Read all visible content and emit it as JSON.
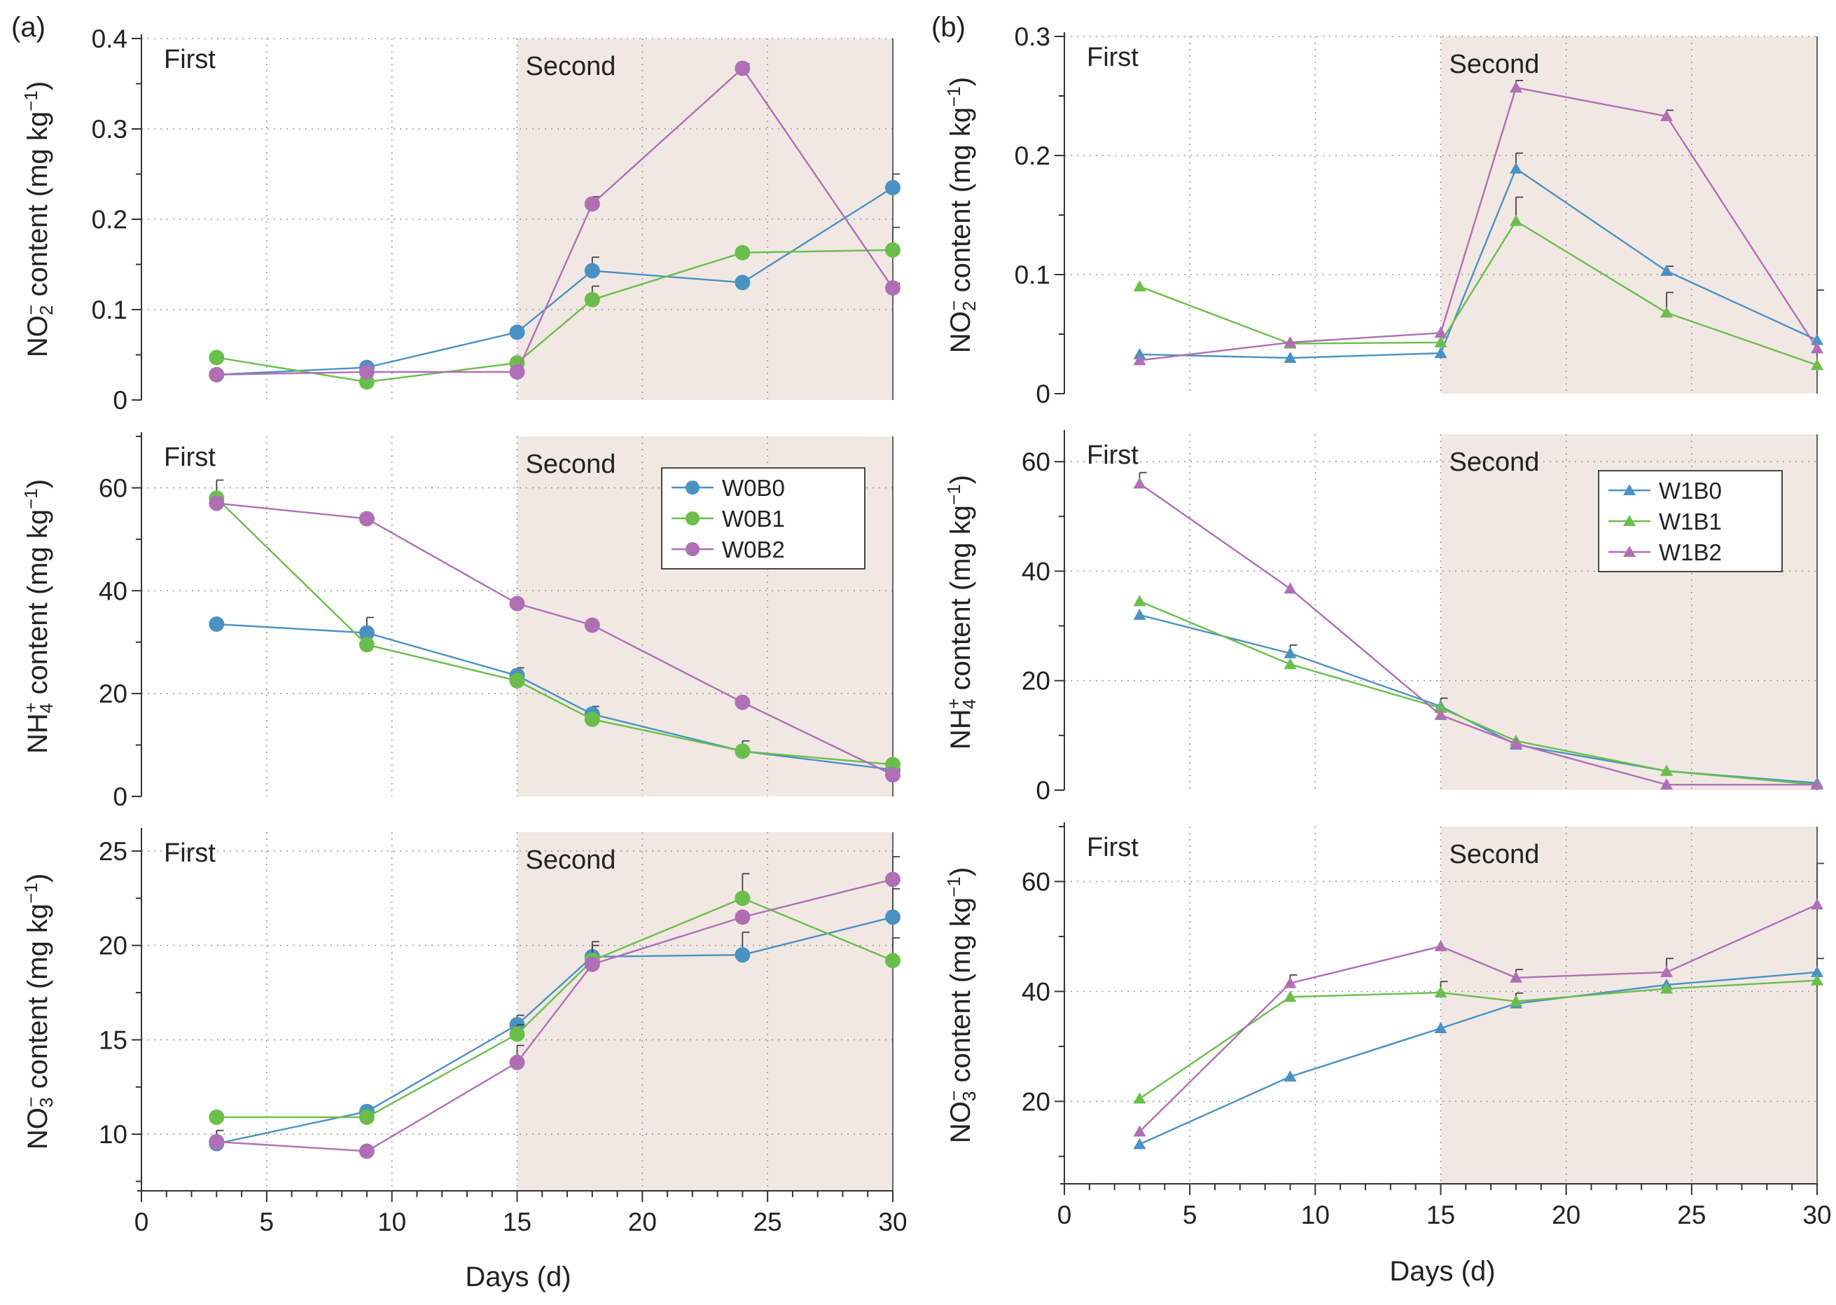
{
  "figure": {
    "panel_labels": [
      "(a)",
      "(b)"
    ],
    "phase_first": "First",
    "phase_second": "Second",
    "x_axis": {
      "label": "Days (d)",
      "range": [
        0,
        30
      ],
      "ticks": [
        0,
        5,
        10,
        15,
        20,
        25,
        30
      ],
      "tick_labels": [
        "0",
        "5",
        "10",
        "15",
        "20",
        "25",
        "30"
      ],
      "tick_labels_b": [
        "0",
        "5",
        "10",
        "15",
        "20",
        "25",
        "30"
      ]
    },
    "second_stage_start_day": 15,
    "second_stage_end_day": 30,
    "colors": {
      "B0": "#4a92c4",
      "B1": "#6abf4b",
      "B2": "#b06fb5",
      "shade": "#f1e8e3",
      "frame": "#333333",
      "grid": "#999999"
    }
  },
  "chart_data": [
    {
      "id": "a-no2",
      "panel": "(a)",
      "type": "line",
      "marker": "circle",
      "ylabel": "NO₂⁻ content (mg kg⁻¹)",
      "ylabel_species": "NO",
      "ylabel_sub": "2",
      "ylabel_sup": "−",
      "ylabel_rest": " content (mg kg",
      "ylabel_unit_sup": "−1",
      "ylabel_close": ")",
      "ylim": [
        0,
        0.4
      ],
      "yticks": [
        0,
        0.1,
        0.2,
        0.3,
        0.4
      ],
      "ytick_labels": [
        "0",
        "0.1",
        "0.2",
        "0.3",
        "0.4"
      ],
      "x": [
        3,
        9,
        15,
        18,
        24,
        30
      ],
      "series": [
        {
          "name": "W0B0",
          "key": "B0",
          "values": [
            0.028,
            0.036,
            0.075,
            0.143,
            0.13,
            0.235
          ],
          "err": [
            0,
            0,
            0,
            0.015,
            0,
            0.015
          ]
        },
        {
          "name": "W0B1",
          "key": "B1",
          "values": [
            0.047,
            0.02,
            0.041,
            0.111,
            0.163,
            0.166
          ],
          "err": [
            0,
            0,
            0,
            0.015,
            0,
            0.025
          ]
        },
        {
          "name": "W0B2",
          "key": "B2",
          "values": [
            0.028,
            0.031,
            0.031,
            0.217,
            0.367,
            0.124
          ],
          "err": [
            0,
            0,
            0,
            0.008,
            0.005,
            0.005
          ]
        }
      ]
    },
    {
      "id": "a-nh4",
      "panel": "(a)",
      "type": "line",
      "marker": "circle",
      "ylabel": "NH₄⁺ content (mg kg⁻¹)",
      "ylabel_species": "NH",
      "ylabel_sub": "4",
      "ylabel_sup": "+",
      "ylabel_rest": " content (mg kg",
      "ylabel_unit_sup": "−1",
      "ylabel_close": ")",
      "ylim": [
        0,
        70
      ],
      "yticks": [
        0,
        20,
        40,
        60
      ],
      "ytick_labels": [
        "0",
        "20",
        "40",
        "60"
      ],
      "x": [
        3,
        9,
        15,
        18,
        24,
        30
      ],
      "legend": [
        "W0B0",
        "W0B1",
        "W0B2"
      ],
      "series": [
        {
          "name": "W0B0",
          "key": "B0",
          "values": [
            33.5,
            31.8,
            23.5,
            16.0,
            8.8,
            5.2
          ],
          "err": [
            0,
            3.0,
            1.5,
            1.5,
            2.0,
            0
          ]
        },
        {
          "name": "W0B1",
          "key": "B1",
          "values": [
            58.0,
            29.5,
            22.5,
            15.0,
            8.8,
            6.2
          ],
          "err": [
            3.5,
            0,
            0,
            0,
            0,
            0
          ]
        },
        {
          "name": "W0B2",
          "key": "B2",
          "values": [
            57.0,
            54.0,
            37.5,
            33.3,
            18.3,
            4.2
          ],
          "err": [
            0,
            0,
            0,
            0,
            0,
            0
          ]
        }
      ]
    },
    {
      "id": "a-no3",
      "panel": "(a)",
      "type": "line",
      "marker": "circle",
      "ylabel": "NO₃⁻ content (mg kg⁻¹)",
      "ylabel_species": "NO",
      "ylabel_sub": "3",
      "ylabel_sup": "−",
      "ylabel_rest": " content (mg kg",
      "ylabel_unit_sup": "−1",
      "ylabel_close": ")",
      "ylim": [
        7,
        26
      ],
      "yticks": [
        10,
        15,
        20,
        25
      ],
      "ytick_labels": [
        "10",
        "15",
        "20",
        "25"
      ],
      "x": [
        3,
        9,
        15,
        18,
        24,
        30
      ],
      "series": [
        {
          "name": "W0B0",
          "key": "B0",
          "values": [
            9.5,
            11.2,
            15.8,
            19.4,
            19.5,
            21.5
          ],
          "err": [
            0,
            0,
            0.5,
            0.8,
            1.2,
            1.5
          ]
        },
        {
          "name": "W0B1",
          "key": "B1",
          "values": [
            10.9,
            10.9,
            15.3,
            19.2,
            22.5,
            19.2
          ],
          "err": [
            0,
            0,
            0.5,
            0.8,
            1.3,
            1.2
          ]
        },
        {
          "name": "W0B2",
          "key": "B2",
          "values": [
            9.6,
            9.1,
            13.8,
            19.0,
            21.5,
            23.5
          ],
          "err": [
            0.6,
            0,
            0.9,
            0,
            0,
            1.2
          ]
        }
      ]
    },
    {
      "id": "b-no2",
      "panel": "(b)",
      "type": "line",
      "marker": "triangle",
      "ylabel": "NO₂⁻ content (mg kg⁻¹)",
      "ylabel_species": "NO",
      "ylabel_sub": "2",
      "ylabel_sup": "−",
      "ylabel_rest": " content (mg kg",
      "ylabel_unit_sup": "−1",
      "ylabel_close": ")",
      "ylim": [
        0,
        0.3
      ],
      "yticks": [
        0,
        0.1,
        0.2,
        0.3
      ],
      "ytick_labels": [
        "0",
        "0.1",
        "0.2",
        "0.3"
      ],
      "x": [
        3,
        9,
        15,
        18,
        24,
        30
      ],
      "series": [
        {
          "name": "W1B0",
          "key": "B0",
          "values": [
            0.033,
            0.03,
            0.034,
            0.189,
            0.103,
            0.045
          ],
          "err": [
            0,
            0,
            0,
            0.013,
            0.004,
            0.042
          ]
        },
        {
          "name": "W1B1",
          "key": "B1",
          "values": [
            0.09,
            0.042,
            0.043,
            0.145,
            0.068,
            0.024
          ],
          "err": [
            0,
            0,
            0,
            0.02,
            0.017,
            0
          ]
        },
        {
          "name": "W1B2",
          "key": "B2",
          "values": [
            0.028,
            0.043,
            0.051,
            0.257,
            0.233,
            0.038
          ],
          "err": [
            0,
            0,
            0,
            0.006,
            0.005,
            0
          ]
        }
      ]
    },
    {
      "id": "b-nh4",
      "panel": "(b)",
      "type": "line",
      "marker": "triangle",
      "ylabel": "NH₄⁺ content (mg kg⁻¹)",
      "ylabel_species": "NH",
      "ylabel_sub": "4",
      "ylabel_sup": "+",
      "ylabel_rest": " content (mg kg",
      "ylabel_unit_sup": "−1",
      "ylabel_close": ")",
      "ylim": [
        0,
        65
      ],
      "yticks": [
        0,
        20,
        40,
        60
      ],
      "ytick_labels": [
        "0",
        "20",
        "40",
        "60"
      ],
      "x": [
        3,
        9,
        15,
        18,
        24,
        30
      ],
      "legend": [
        "W1B0",
        "W1B1",
        "W1B2"
      ],
      "series": [
        {
          "name": "W1B0",
          "key": "B0",
          "values": [
            32.0,
            25.0,
            15.3,
            8.3,
            3.5,
            1.3
          ],
          "err": [
            0,
            1.5,
            1.5,
            0,
            0,
            0
          ]
        },
        {
          "name": "W1B1",
          "key": "B1",
          "values": [
            34.5,
            23.0,
            15.0,
            9.0,
            3.5,
            1.0
          ],
          "err": [
            0,
            0,
            0,
            0,
            0,
            0
          ]
        },
        {
          "name": "W1B2",
          "key": "B2",
          "values": [
            56.0,
            36.8,
            13.7,
            8.5,
            1.0,
            1.0
          ],
          "err": [
            2.0,
            0,
            0,
            0,
            0,
            0
          ]
        }
      ]
    },
    {
      "id": "b-no3",
      "panel": "(b)",
      "type": "line",
      "marker": "triangle",
      "ylabel": "NO₃⁻ content (mg kg⁻¹)",
      "ylabel_species": "NO",
      "ylabel_sub": "3",
      "ylabel_sup": "−",
      "ylabel_rest": " content (mg kg",
      "ylabel_unit_sup": "−1",
      "ylabel_close": ")",
      "ylim": [
        5,
        70
      ],
      "yticks": [
        20,
        40,
        60
      ],
      "ytick_labels": [
        "20",
        "40",
        "60"
      ],
      "x": [
        3,
        9,
        15,
        18,
        24,
        30
      ],
      "series": [
        {
          "name": "W1B0",
          "key": "B0",
          "values": [
            12.2,
            24.5,
            33.3,
            37.8,
            41.2,
            43.5
          ],
          "err": [
            0,
            0,
            0,
            0,
            0,
            2.5
          ]
        },
        {
          "name": "W1B1",
          "key": "B1",
          "values": [
            20.5,
            39.0,
            39.8,
            38.2,
            40.5,
            42.0
          ],
          "err": [
            0,
            0,
            2.0,
            1.5,
            0,
            0
          ]
        },
        {
          "name": "W1B2",
          "key": "B2",
          "values": [
            14.5,
            41.5,
            48.2,
            42.5,
            43.5,
            55.8
          ],
          "err": [
            0,
            1.5,
            0,
            1.5,
            2.5,
            7.5
          ]
        }
      ]
    }
  ]
}
